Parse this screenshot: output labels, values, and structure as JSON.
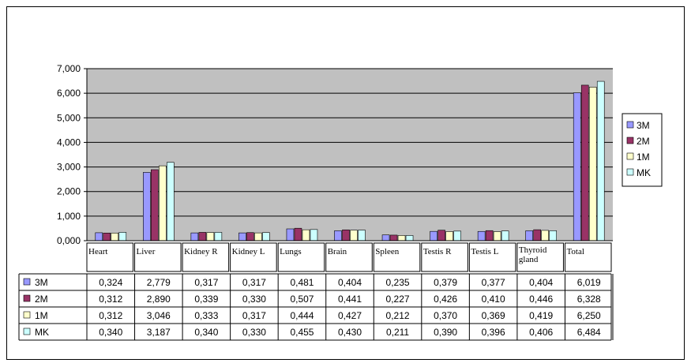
{
  "chart_data": {
    "type": "bar",
    "title": "",
    "xlabel": "",
    "ylabel": "",
    "ylim": [
      0,
      7
    ],
    "yticks": [
      0,
      1,
      2,
      3,
      4,
      5,
      6,
      7
    ],
    "ytick_labels": [
      "0,000",
      "1,000",
      "2,000",
      "3,000",
      "4,000",
      "5,000",
      "6,000",
      "7,000"
    ],
    "grid": true,
    "legend_position": "right",
    "plot_background": "#C0C0C0",
    "categories": [
      "Heart",
      "Liver",
      "Kidney R",
      "Kidney L",
      "Lungs",
      "Brain",
      "Spleen",
      "Testis R",
      "Testis L",
      "Thyroid gland",
      "Total"
    ],
    "series": [
      {
        "name": "3M",
        "color": "#9999FF",
        "values": [
          0.324,
          2.779,
          0.317,
          0.317,
          0.481,
          0.404,
          0.235,
          0.379,
          0.377,
          0.404,
          6.019
        ],
        "value_labels": [
          "0,324",
          "2,779",
          "0,317",
          "0,317",
          "0,481",
          "0,404",
          "0,235",
          "0,379",
          "0,377",
          "0,404",
          "6,019"
        ]
      },
      {
        "name": "2M",
        "color": "#993366",
        "values": [
          0.312,
          2.89,
          0.339,
          0.33,
          0.507,
          0.441,
          0.227,
          0.426,
          0.41,
          0.446,
          6.328
        ],
        "value_labels": [
          "0,312",
          "2,890",
          "0,339",
          "0,330",
          "0,507",
          "0,441",
          "0,227",
          "0,426",
          "0,410",
          "0,446",
          "6,328"
        ]
      },
      {
        "name": "1M",
        "color": "#FFFFCC",
        "values": [
          0.312,
          3.046,
          0.333,
          0.317,
          0.444,
          0.427,
          0.212,
          0.37,
          0.369,
          0.419,
          6.25
        ],
        "value_labels": [
          "0,312",
          "3,046",
          "0,333",
          "0,317",
          "0,444",
          "0,427",
          "0,212",
          "0,370",
          "0,369",
          "0,419",
          "6,250"
        ]
      },
      {
        "name": "MK",
        "color": "#CCFFFF",
        "values": [
          0.34,
          3.187,
          0.34,
          0.33,
          0.455,
          0.43,
          0.211,
          0.39,
          0.396,
          0.406,
          6.484
        ],
        "value_labels": [
          "0,340",
          "3,187",
          "0,340",
          "0,330",
          "0,455",
          "0,430",
          "0,211",
          "0,390",
          "0,396",
          "0,406",
          "6,484"
        ]
      }
    ]
  }
}
